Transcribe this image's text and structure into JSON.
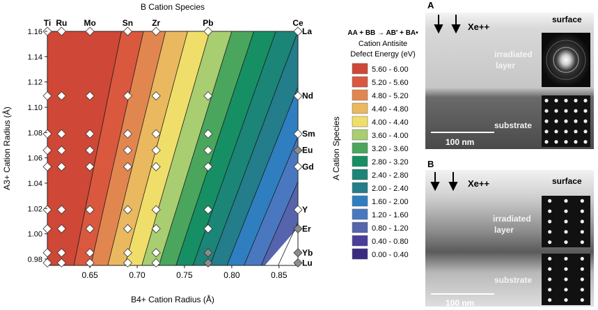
{
  "chart_data": {
    "type": "heatmap",
    "title": "B Cation Species",
    "xlabel": "B4+ Cation Radius (Å)",
    "ylabel": "A3+ Cation Radius (Å)",
    "right_axis_label": "A Cation Species",
    "xlim": [
      0.605,
      0.87
    ],
    "ylim": [
      0.975,
      1.16
    ],
    "x_ticks": [
      0.65,
      0.7,
      0.75,
      0.8,
      0.85
    ],
    "x_tick_labels": [
      "0.65",
      "0.70",
      "0.75",
      "0.80",
      "0.85"
    ],
    "y_ticks": [
      0.98,
      1.0,
      1.02,
      1.04,
      1.06,
      1.08,
      1.1,
      1.12,
      1.14,
      1.16
    ],
    "y_tick_labels": [
      "0.98",
      "1.00",
      "1.02",
      "1.04",
      "1.06",
      "1.08",
      "1.10",
      "1.12",
      "1.14",
      "1.16"
    ],
    "b_species": [
      {
        "name": "Ti",
        "r": 0.605
      },
      {
        "name": "Ru",
        "r": 0.62
      },
      {
        "name": "Mo",
        "r": 0.65
      },
      {
        "name": "Sn",
        "r": 0.69
      },
      {
        "name": "Zr",
        "r": 0.72
      },
      {
        "name": "Pb",
        "r": 0.775
      },
      {
        "name": "Ce",
        "r": 0.87
      }
    ],
    "a_species": [
      {
        "name": "La",
        "r": 1.16
      },
      {
        "name": "Nd",
        "r": 1.109
      },
      {
        "name": "Sm",
        "r": 1.079
      },
      {
        "name": "Eu",
        "r": 1.066
      },
      {
        "name": "Gd",
        "r": 1.053
      },
      {
        "name": "Y",
        "r": 1.019
      },
      {
        "name": "Er",
        "r": 1.004
      },
      {
        "name": "Yb",
        "r": 0.985
      },
      {
        "name": "Lu",
        "r": 0.977
      }
    ],
    "legend": {
      "title_formula": "AA + BB → AB′ + BA•",
      "title_lines": [
        "Cation Antisite",
        "Defect Energy (eV)"
      ],
      "entries": [
        {
          "label": "5.60 - 6.00",
          "color": "#cf4736"
        },
        {
          "label": "5.20 - 5.60",
          "color": "#d9583e"
        },
        {
          "label": "4.80 - 5.20",
          "color": "#e2864f"
        },
        {
          "label": "4.40 - 4.80",
          "color": "#eab85f"
        },
        {
          "label": "4.00 - 4.40",
          "color": "#f0de6a"
        },
        {
          "label": "3.60 - 4.00",
          "color": "#a9cd71"
        },
        {
          "label": "3.20 - 3.60",
          "color": "#4aa65c"
        },
        {
          "label": "2.80 - 3.20",
          "color": "#168f64"
        },
        {
          "label": "2.40 - 2.80",
          "color": "#1b8578"
        },
        {
          "label": "2.00 - 2.40",
          "color": "#237d8a"
        },
        {
          "label": "1.60 - 2.00",
          "color": "#2f7fc0"
        },
        {
          "label": "1.20 - 1.60",
          "color": "#4a78c0"
        },
        {
          "label": "0.80 - 1.20",
          "color": "#5664ad"
        },
        {
          "label": "0.40 - 0.80",
          "color": "#493e99"
        },
        {
          "label": "0.00 - 0.40",
          "color": "#3b2a82"
        }
      ]
    }
  },
  "panels": [
    {
      "letter": "A",
      "ion": "Xe++",
      "surface": "surface",
      "layer_line1": "irradiated",
      "layer_line2": "layer",
      "substrate": "substrate",
      "scale": "100 nm"
    },
    {
      "letter": "B",
      "ion": "Xe++",
      "surface": "surface",
      "layer_line1": "irradiated",
      "layer_line2": "layer",
      "substrate": "substrate",
      "scale": "100 nm"
    }
  ]
}
